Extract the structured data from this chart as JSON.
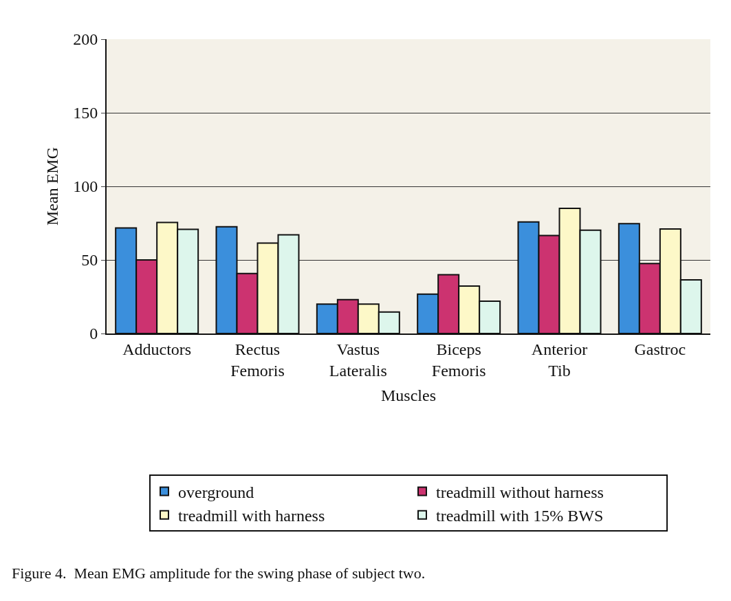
{
  "chart_data": {
    "type": "bar",
    "xlabel": "Muscles",
    "ylabel": "Mean EMG",
    "categories": [
      "Adductors",
      "Rectus\nFemoris",
      "Vastus\nLateralis",
      "Biceps\nFemoris",
      "Anterior\nTib",
      "Gastroc"
    ],
    "series": [
      {
        "name": "overground",
        "color": "#3b8fdc",
        "values": [
          71.7,
          72.5,
          20,
          26.8,
          75.8,
          74.7
        ]
      },
      {
        "name": "treadmill without harness",
        "color": "#cc3370",
        "values": [
          50,
          40.8,
          23,
          39.9,
          66.6,
          47.6
        ]
      },
      {
        "name": "treadmill with harness",
        "color": "#fdf8c8",
        "values": [
          75.5,
          61.4,
          20,
          32.3,
          85,
          71
        ]
      },
      {
        "name": "treadmill with 15% BWS",
        "color": "#ddf6ec",
        "values": [
          70.8,
          67,
          14.6,
          22,
          70.2,
          36.4
        ]
      }
    ],
    "ylim": [
      0,
      200
    ],
    "yticks": [
      0,
      50,
      100,
      150,
      200
    ],
    "grid": "y",
    "legend": "bottom",
    "annotations": [
      "Figure 4.  Mean EMG amplitude for the swing phase of subject two."
    ]
  }
}
